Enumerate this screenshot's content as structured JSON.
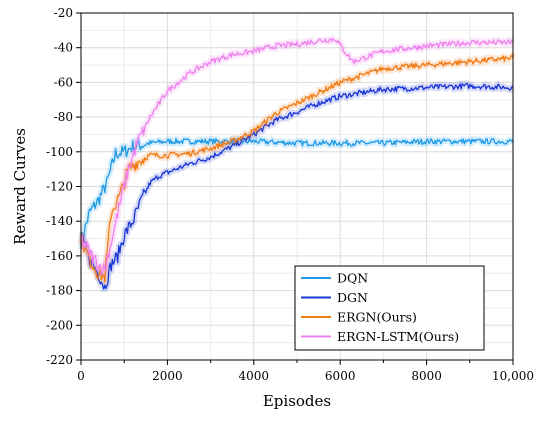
{
  "chart_data": {
    "type": "line",
    "title": "",
    "xlabel": "Episodes",
    "ylabel": "Reward Curves",
    "xlim": [
      0,
      10000
    ],
    "ylim": [
      -220,
      -20
    ],
    "x_ticks": [
      0,
      2000,
      4000,
      6000,
      8000,
      10000
    ],
    "x_tick_labels": [
      "0",
      "2000",
      "4000",
      "6000",
      "8000",
      "10,000"
    ],
    "y_ticks": [
      -220,
      -200,
      -180,
      -160,
      -140,
      -120,
      -100,
      -80,
      -60,
      -40,
      -20
    ],
    "y_tick_labels": [
      "-220",
      "-200",
      "-180",
      "-160",
      "-140",
      "-120",
      "-100",
      "-80",
      "-60",
      "-40",
      "-20"
    ],
    "grid": true,
    "legend_position": "bottom-right",
    "series": [
      {
        "name": "DQN",
        "color": "#1e9ae8",
        "x": [
          0,
          200,
          400,
          600,
          800,
          1000,
          1200,
          1600,
          2000,
          3000,
          4000,
          5000,
          6000,
          7000,
          8000,
          9000,
          10000
        ],
        "values": [
          -152,
          -135,
          -128,
          -118,
          -101,
          -100,
          -97,
          -95,
          -94,
          -94,
          -94,
          -95,
          -95,
          -95,
          -94,
          -94,
          -94
        ]
      },
      {
        "name": "DGN",
        "color": "#1a35d6",
        "x": [
          0,
          200,
          400,
          550,
          700,
          850,
          1000,
          1200,
          1400,
          1600,
          1800,
          2000,
          2500,
          3000,
          3500,
          4000,
          4500,
          5000,
          5500,
          6000,
          7000,
          8000,
          9000,
          10000
        ],
        "values": [
          -150,
          -162,
          -170,
          -178,
          -165,
          -160,
          -148,
          -140,
          -128,
          -118,
          -114,
          -112,
          -107,
          -103,
          -97,
          -90,
          -82,
          -77,
          -72,
          -68,
          -64,
          -63,
          -62,
          -63
        ]
      },
      {
        "name": "ERGN(Ours)",
        "color": "#f27a12",
        "x": [
          0,
          200,
          400,
          550,
          700,
          900,
          1100,
          1300,
          1600,
          2000,
          2500,
          3000,
          3500,
          4000,
          4500,
          5000,
          5500,
          6000,
          6500,
          7000,
          8000,
          9000,
          10000
        ],
        "values": [
          -150,
          -162,
          -170,
          -172,
          -135,
          -125,
          -110,
          -106,
          -102,
          -102,
          -101,
          -98,
          -94,
          -88,
          -78,
          -72,
          -66,
          -60,
          -56,
          -52,
          -50,
          -48,
          -46
        ]
      },
      {
        "name": "ERGN-LSTM(Ours)",
        "color": "#f080ee",
        "x": [
          0,
          200,
          400,
          550,
          700,
          900,
          1100,
          1300,
          1600,
          2000,
          2500,
          3000,
          3500,
          4000,
          4500,
          5000,
          5500,
          5900,
          6100,
          6300,
          7000,
          8000,
          9000,
          10000
        ],
        "values": [
          -150,
          -158,
          -165,
          -168,
          -152,
          -130,
          -110,
          -95,
          -80,
          -65,
          -55,
          -48,
          -44,
          -42,
          -39,
          -38,
          -36,
          -35,
          -42,
          -48,
          -42,
          -39,
          -37,
          -37
        ]
      }
    ]
  }
}
